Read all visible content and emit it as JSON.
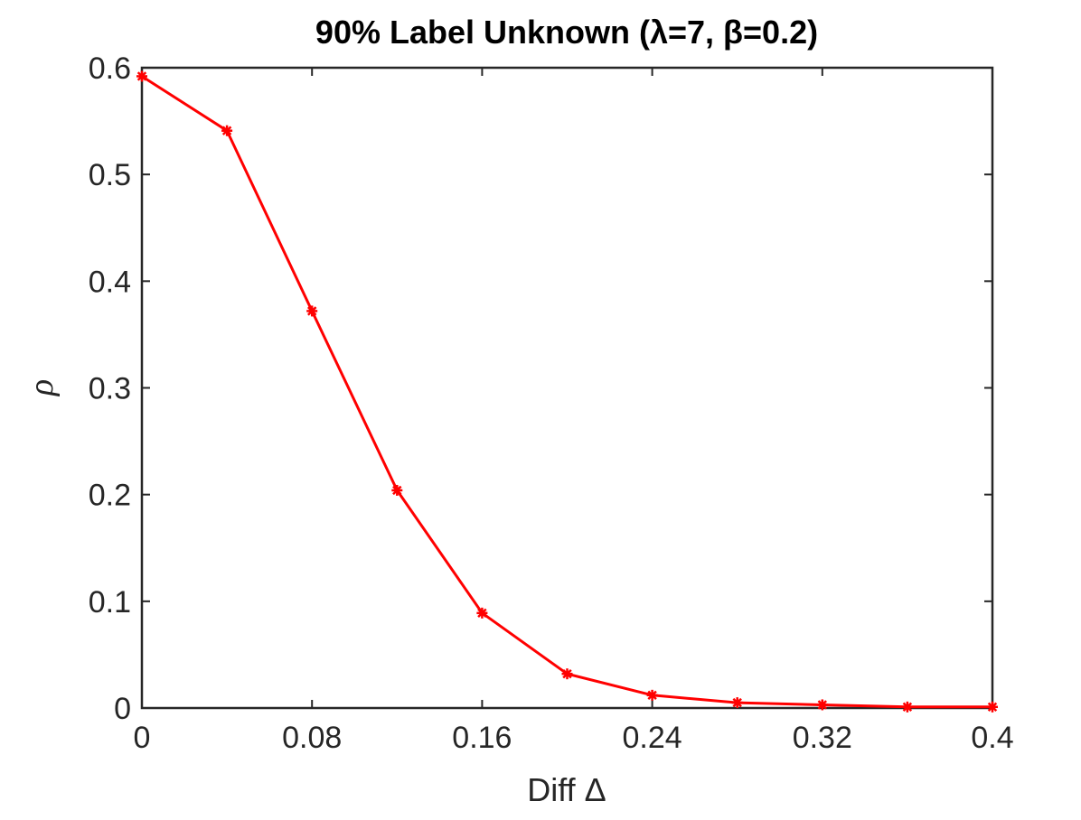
{
  "chart_data": {
    "type": "line",
    "title": "90% Label Unknown (λ=7, β=0.2)",
    "xlabel": "Diff Δ",
    "ylabel": "ρ",
    "xlim": [
      0,
      0.4
    ],
    "ylim": [
      0,
      0.6
    ],
    "xticks": [
      0,
      0.08,
      0.16,
      0.24,
      0.32,
      0.4
    ],
    "xtick_labels": [
      "0",
      "0.08",
      "0.16",
      "0.24",
      "0.32",
      "0.4"
    ],
    "yticks": [
      0,
      0.1,
      0.2,
      0.3,
      0.4,
      0.5,
      0.6
    ],
    "ytick_labels": [
      "0",
      "0.1",
      "0.2",
      "0.3",
      "0.4",
      "0.5",
      "0.6"
    ],
    "grid": false,
    "series": [
      {
        "color": "#ff0000",
        "marker": "asterisk",
        "x": [
          0,
          0.04,
          0.08,
          0.12,
          0.16,
          0.2,
          0.24,
          0.28,
          0.32,
          0.36,
          0.4
        ],
        "y": [
          0.592,
          0.541,
          0.372,
          0.204,
          0.089,
          0.032,
          0.012,
          0.005,
          0.003,
          0.001,
          0.001
        ]
      }
    ]
  }
}
